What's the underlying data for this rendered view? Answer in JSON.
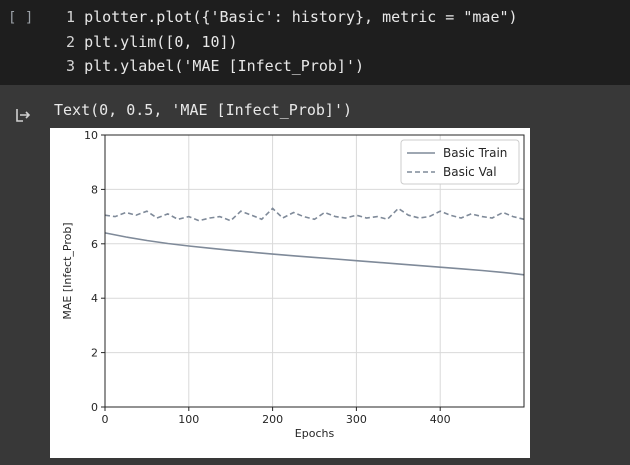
{
  "cell": {
    "run_indicator": "[ ]",
    "code_lines": [
      {
        "num": "1",
        "text": "plotter.plot({'Basic': history}, metric = \"mae\")"
      },
      {
        "num": "2",
        "text": "plt.ylim([0, 10])"
      },
      {
        "num": "3",
        "text": "plt.ylabel('MAE [Infect_Prob]')"
      }
    ]
  },
  "output": {
    "icon": "output-arrow-icon",
    "text": "Text(0, 0.5, 'MAE [Infect_Prob]')"
  },
  "chart_data": {
    "type": "line",
    "xlabel": "Epochs",
    "ylabel": "MAE [Infect_Prob]",
    "xlim": [
      0,
      500
    ],
    "ylim": [
      0,
      10
    ],
    "xticks": [
      0,
      100,
      200,
      300,
      400
    ],
    "yticks": [
      0,
      2,
      4,
      6,
      8,
      10
    ],
    "grid": true,
    "legend_position": "top-right",
    "series": [
      {
        "name": "Basic Train",
        "style": "solid",
        "color": "#7f8a99",
        "x": [
          0,
          25,
          50,
          75,
          100,
          125,
          150,
          175,
          200,
          225,
          250,
          275,
          300,
          325,
          350,
          375,
          400,
          425,
          450,
          475,
          500
        ],
        "y": [
          6.4,
          6.25,
          6.12,
          6.01,
          5.92,
          5.84,
          5.76,
          5.69,
          5.62,
          5.56,
          5.5,
          5.44,
          5.38,
          5.32,
          5.26,
          5.2,
          5.14,
          5.08,
          5.02,
          4.95,
          4.86
        ]
      },
      {
        "name": "Basic Val",
        "style": "dashed",
        "color": "#7f8a99",
        "x": [
          0,
          12,
          25,
          37,
          50,
          62,
          75,
          87,
          100,
          112,
          125,
          137,
          150,
          162,
          175,
          187,
          200,
          212,
          225,
          237,
          250,
          262,
          275,
          287,
          300,
          312,
          325,
          337,
          350,
          362,
          375,
          387,
          400,
          412,
          425,
          437,
          450,
          462,
          475,
          487,
          500
        ],
        "y": [
          7.05,
          7.0,
          7.15,
          7.05,
          7.2,
          6.95,
          7.1,
          6.9,
          7.0,
          6.85,
          6.95,
          7.0,
          6.85,
          7.2,
          7.05,
          6.9,
          7.3,
          6.95,
          7.15,
          7.0,
          6.9,
          7.15,
          7.0,
          6.95,
          7.05,
          6.95,
          7.0,
          6.9,
          7.3,
          7.05,
          6.95,
          7.0,
          7.2,
          7.05,
          6.95,
          7.1,
          7.0,
          6.95,
          7.15,
          7.0,
          6.9
        ]
      }
    ]
  }
}
